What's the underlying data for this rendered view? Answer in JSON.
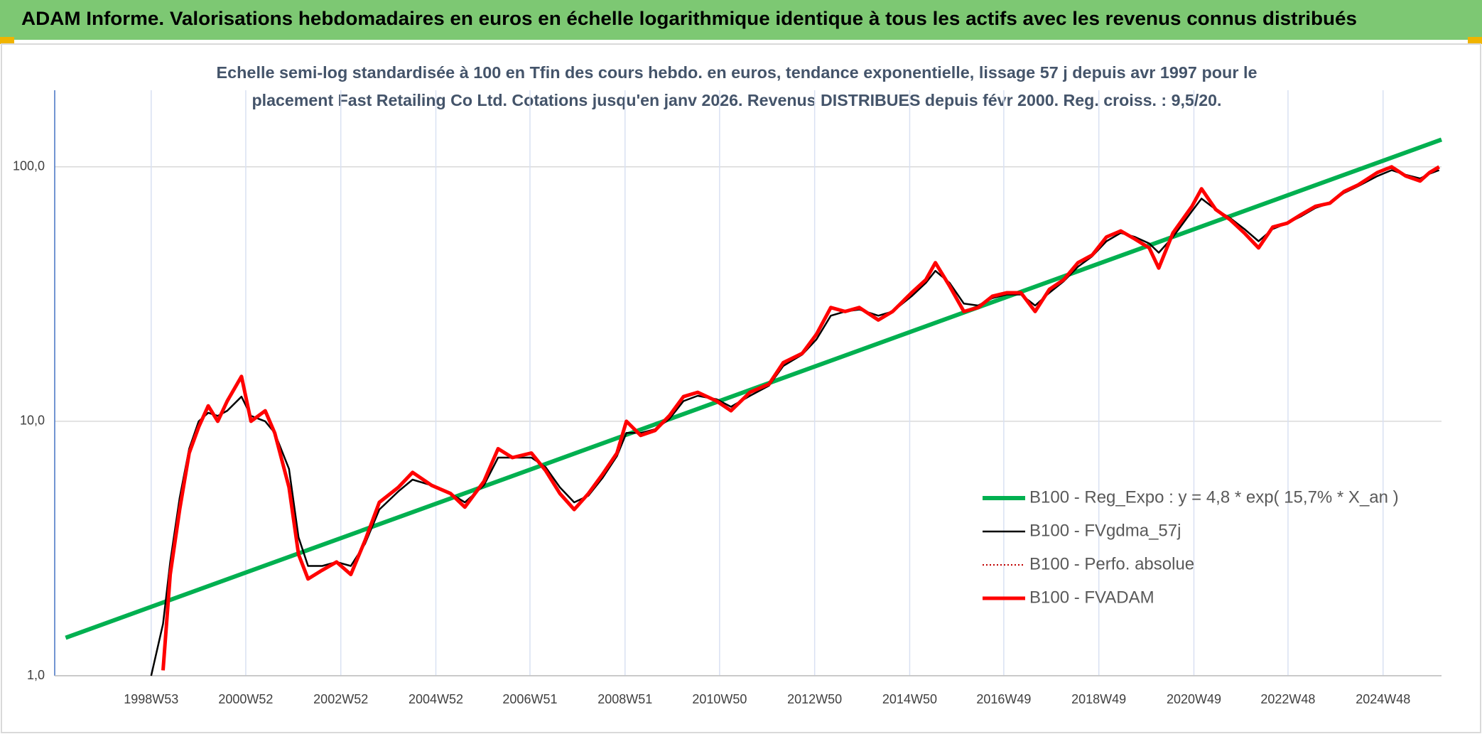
{
  "chart_data": {
    "type": "line",
    "title": "ADAM Informe. Valorisations hebdomadaires en euros en échelle logarithmique identique à tous les actifs avec les revenus connus distribués",
    "subtitle": [
      "Echelle semi-log standardisée à 100 en Tfin des cours hebdo. en euros, tendance exponentielle, lissage 57 j depuis avr 1997 pour le",
      "placement Fast Retailing Co Ltd. Cotations jusqu'en janv 2026. Revenus DISTRIBUES depuis févr 2000. Reg. croiss. : 9,5/20."
    ],
    "log_scale": true,
    "grid": true,
    "legend": "lower right",
    "xlim": [
      1996.97,
      2026.15
    ],
    "xticks": [
      {
        "value": 1999.0,
        "label": "1998W53"
      },
      {
        "value": 2000.99,
        "label": "2000W52"
      },
      {
        "value": 2002.99,
        "label": "2002W52"
      },
      {
        "value": 2004.99,
        "label": "2004W52"
      },
      {
        "value": 2006.97,
        "label": "2006W51"
      },
      {
        "value": 2008.97,
        "label": "2008W51"
      },
      {
        "value": 2010.96,
        "label": "2010W50"
      },
      {
        "value": 2012.96,
        "label": "2012W50"
      },
      {
        "value": 2014.96,
        "label": "2014W50"
      },
      {
        "value": 2016.94,
        "label": "2016W49"
      },
      {
        "value": 2018.94,
        "label": "2018W49"
      },
      {
        "value": 2020.94,
        "label": "2020W49"
      },
      {
        "value": 2022.92,
        "label": "2022W48"
      },
      {
        "value": 2024.92,
        "label": "2024W48"
      }
    ],
    "ylim": [
      1,
      200
    ],
    "yticks": [
      {
        "value": 1,
        "label": "1,0"
      },
      {
        "value": 10,
        "label": "10,0"
      },
      {
        "value": 100,
        "label": "100,0"
      }
    ],
    "x": [
      1999.0,
      1999.25,
      1999.4,
      1999.6,
      1999.8,
      2000.0,
      2000.2,
      2000.4,
      2000.6,
      2000.9,
      2001.1,
      2001.4,
      2001.6,
      2001.9,
      2002.1,
      2002.3,
      2002.6,
      2002.9,
      2003.2,
      2003.5,
      2003.8,
      2004.2,
      2004.5,
      2004.9,
      2005.3,
      2005.6,
      2006.0,
      2006.3,
      2006.6,
      2007.0,
      2007.3,
      2007.6,
      2007.9,
      2008.2,
      2008.5,
      2008.8,
      2009.0,
      2009.3,
      2009.6,
      2009.9,
      2010.2,
      2010.5,
      2010.9,
      2011.2,
      2011.6,
      2012.0,
      2012.3,
      2012.7,
      2013.0,
      2013.3,
      2013.6,
      2013.9,
      2014.3,
      2014.6,
      2015.0,
      2015.3,
      2015.5,
      2015.8,
      2016.1,
      2016.4,
      2016.7,
      2017.0,
      2017.3,
      2017.6,
      2017.9,
      2018.2,
      2018.5,
      2018.8,
      2019.1,
      2019.4,
      2019.7,
      2020.0,
      2020.2,
      2020.5,
      2020.9,
      2021.1,
      2021.4,
      2021.7,
      2022.0,
      2022.3,
      2022.6,
      2022.9,
      2023.2,
      2023.5,
      2023.8,
      2024.1,
      2024.4,
      2024.8,
      2025.1,
      2025.4,
      2025.7,
      2025.9,
      2026.1
    ],
    "series": [
      {
        "name": "B100 - Reg_Expo : y = 4,8 * exp( 15,7% *  X_an )",
        "color": "#00b050",
        "line_style": "solid",
        "x": [
          1997.2,
          2026.15
        ],
        "values": [
          1.41,
          128
        ]
      },
      {
        "name": "B100 - FVgdma_57j",
        "color": "#000000",
        "line_style": "solid",
        "values": [
          1.0,
          1.6,
          2.8,
          5.0,
          7.8,
          10.0,
          10.8,
          10.5,
          11.0,
          12.5,
          10.5,
          10.0,
          9.0,
          6.5,
          3.5,
          2.7,
          2.7,
          2.8,
          2.7,
          3.3,
          4.5,
          5.3,
          5.9,
          5.6,
          5.2,
          4.8,
          5.6,
          7.2,
          7.2,
          7.2,
          6.6,
          5.5,
          4.8,
          5.1,
          6.0,
          7.3,
          9.0,
          9.0,
          9.3,
          10.2,
          12.0,
          12.6,
          12.2,
          11.4,
          12.6,
          13.8,
          16.5,
          18.3,
          21,
          26,
          27,
          27.5,
          26,
          27,
          31,
          35,
          39,
          35,
          29,
          28.5,
          30.5,
          31.5,
          31.5,
          28.5,
          32,
          35.5,
          40.5,
          44.5,
          51,
          55,
          53,
          50,
          46,
          53,
          67,
          75,
          68,
          63,
          57,
          51,
          57,
          60,
          64,
          69,
          72,
          79,
          84,
          92,
          97,
          93,
          90,
          94,
          97
        ]
      },
      {
        "name": "B100 - Perfo. absolue",
        "color": "#c00000",
        "line_style": "dotted",
        "values": [
          null,
          1.05,
          2.5,
          4.5,
          7.5,
          9.5,
          11.5,
          10.0,
          12.0,
          15.0,
          10.0,
          11.0,
          9.0,
          5.5,
          3.0,
          2.4,
          2.6,
          2.8,
          2.5,
          3.4,
          4.8,
          5.5,
          6.3,
          5.6,
          5.2,
          4.6,
          5.8,
          7.8,
          7.2,
          7.5,
          6.4,
          5.2,
          4.5,
          5.2,
          6.2,
          7.5,
          10.0,
          8.8,
          9.2,
          10.5,
          12.5,
          13.0,
          12.0,
          11.0,
          13.0,
          14.0,
          17,
          18.5,
          22,
          28,
          27,
          28,
          25,
          27,
          32,
          36,
          42,
          34,
          27,
          28,
          31,
          32,
          32,
          27,
          33,
          36,
          42,
          45,
          53,
          56,
          52,
          48,
          40,
          55,
          70,
          82,
          68,
          62,
          55,
          48,
          58,
          60,
          65,
          70,
          72,
          80,
          85,
          95,
          100,
          92,
          88,
          95,
          100
        ]
      },
      {
        "name": "B100 - FVADAM",
        "color": "#ff0000",
        "line_style": "solid",
        "values": [
          null,
          1.05,
          2.5,
          4.5,
          7.5,
          9.5,
          11.5,
          10.0,
          12.0,
          15.0,
          10.0,
          11.0,
          9.0,
          5.5,
          3.0,
          2.4,
          2.6,
          2.8,
          2.5,
          3.4,
          4.8,
          5.5,
          6.3,
          5.6,
          5.2,
          4.6,
          5.8,
          7.8,
          7.2,
          7.5,
          6.4,
          5.2,
          4.5,
          5.2,
          6.2,
          7.5,
          10.0,
          8.8,
          9.2,
          10.5,
          12.5,
          13.0,
          12.0,
          11.0,
          13.0,
          14.0,
          17,
          18.5,
          22,
          28,
          27,
          28,
          25,
          27,
          32,
          36,
          42,
          34,
          27,
          28,
          31,
          32,
          32,
          27,
          33,
          36,
          42,
          45,
          53,
          56,
          52,
          48,
          40,
          55,
          70,
          82,
          68,
          62,
          55,
          48,
          58,
          60,
          65,
          70,
          72,
          80,
          85,
          95,
          100,
          92,
          88,
          95,
          100
        ]
      }
    ]
  }
}
